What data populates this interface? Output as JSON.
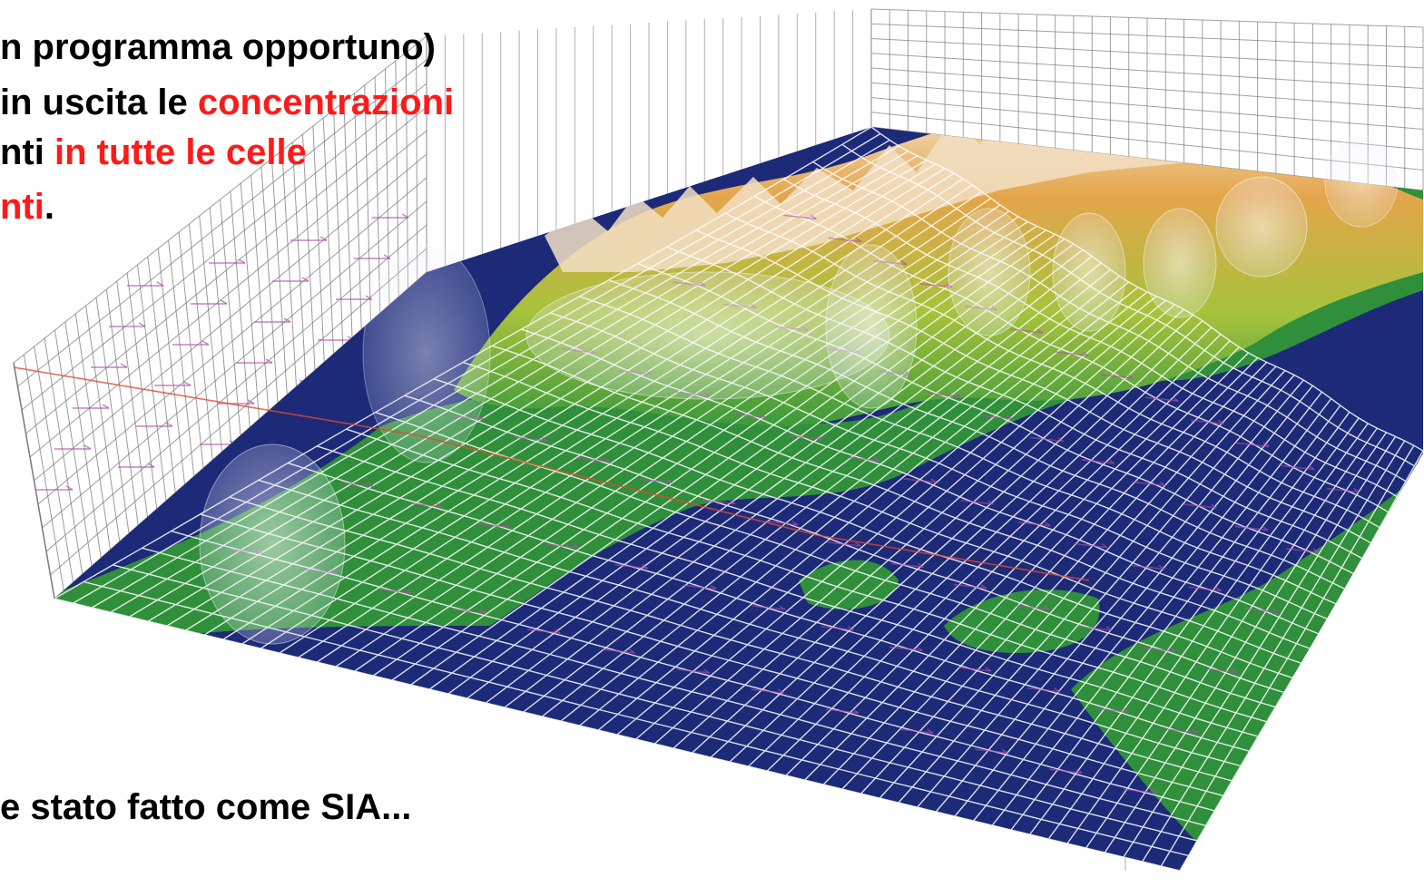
{
  "text": {
    "line1": "n programma opportuno)",
    "line2_black": "in uscita le ",
    "line2_red": "concentrazioni",
    "line3_black": "nti ",
    "line3_red": "in tutte le celle",
    "line4_red": "nti",
    "line4_black": ".",
    "bottom": "e stato fatto come SIA..."
  },
  "colors": {
    "highlight_text": "#ff1a1a",
    "sea": "#1c2a78",
    "lowland": "#2f8f3a",
    "hill": "#8fbf3a",
    "mountain": "#e0a040",
    "peak": "#f3e6d0",
    "grid": "#ffffff",
    "wind_arrows": "#b04fb0",
    "frame": "#7a7a7a"
  },
  "figure": {
    "type": "3D terrain surface with wind vector field and translucent concentration plumes",
    "icon": "terrain-3d-illustration"
  }
}
